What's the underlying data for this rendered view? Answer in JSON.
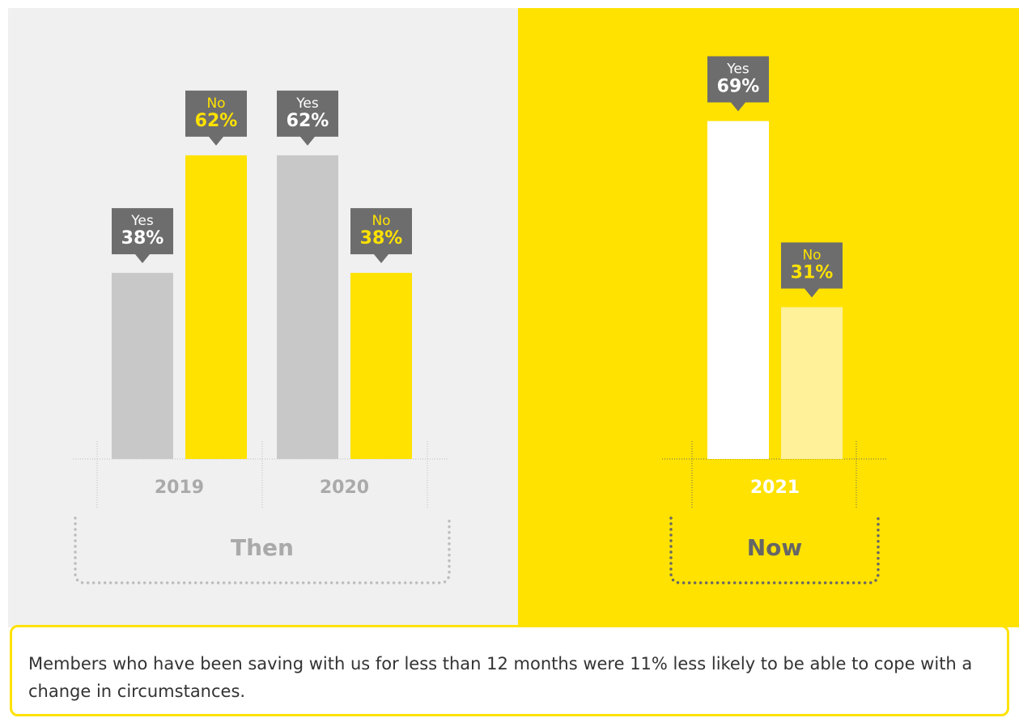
{
  "chart_data": [
    {
      "type": "bar",
      "label": "Then",
      "background": "#f0f0f0",
      "categories": [
        "2019",
        "2020"
      ],
      "series": [
        {
          "name": "Yes",
          "color": "#c8c8c8",
          "values": [
            38,
            62
          ],
          "value_labels": [
            "38%",
            "62%"
          ]
        },
        {
          "name": "No",
          "color": "#ffe200",
          "values": [
            62,
            38
          ],
          "value_labels": [
            "62%",
            "38%"
          ]
        }
      ]
    },
    {
      "type": "bar",
      "label": "Now",
      "background": "#ffe200",
      "categories": [
        "2021"
      ],
      "series": [
        {
          "name": "Yes",
          "color": "#ffffff",
          "values": [
            69
          ],
          "value_labels": [
            "69%"
          ]
        },
        {
          "name": "No",
          "color": "#fff09a",
          "values": [
            31
          ],
          "value_labels": [
            "31%"
          ]
        }
      ]
    }
  ],
  "note": "Members who have been saving with us for less than 12 months were 11% less likely to be able to cope with a change in circumstances."
}
